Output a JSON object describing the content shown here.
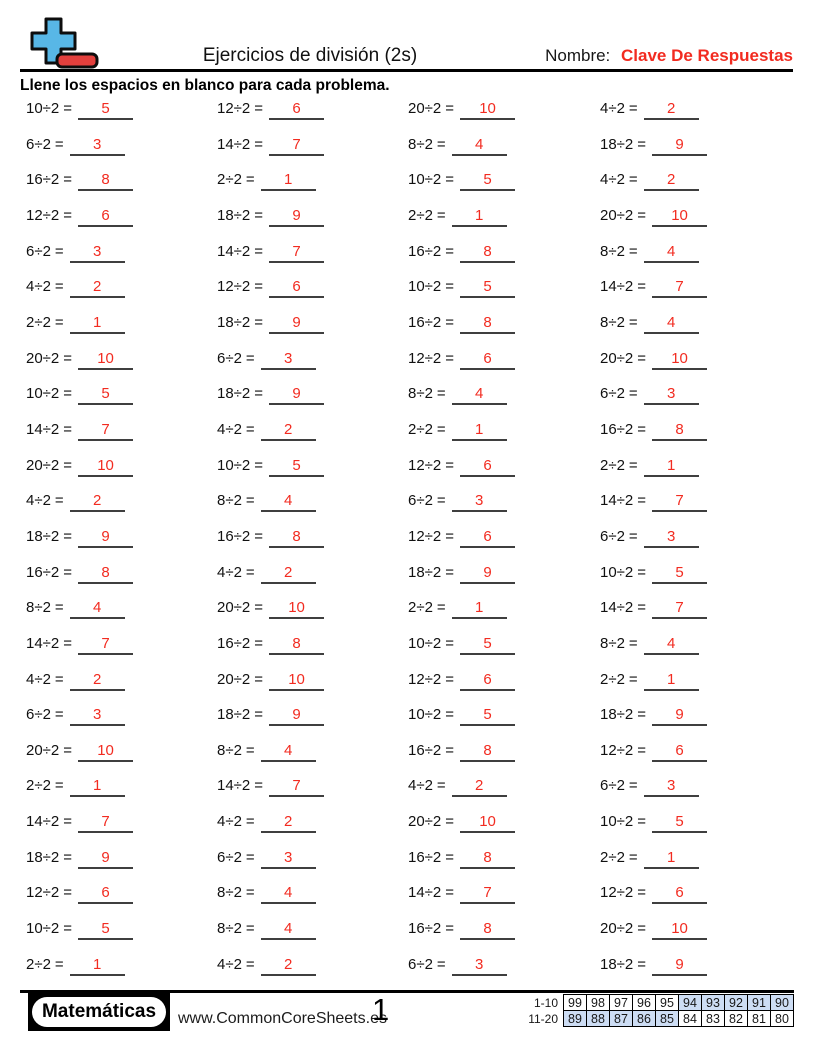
{
  "header": {
    "title": "Ejercicios de división (2s)",
    "name_label": "Nombre:",
    "name_value": "Clave De Respuestas"
  },
  "instruction": "Llene los espacios en blanco para cada problema.",
  "problems": {
    "divisor": 2,
    "equals_sign": "=",
    "columns": [
      {
        "items": [
          {
            "q": "10÷2",
            "a": "5"
          },
          {
            "q": "6÷2",
            "a": "3"
          },
          {
            "q": "16÷2",
            "a": "8"
          },
          {
            "q": "12÷2",
            "a": "6"
          },
          {
            "q": "6÷2",
            "a": "3"
          },
          {
            "q": "4÷2",
            "a": "2"
          },
          {
            "q": "2÷2",
            "a": "1"
          },
          {
            "q": "20÷2",
            "a": "10"
          },
          {
            "q": "10÷2",
            "a": "5"
          },
          {
            "q": "14÷2",
            "a": "7"
          },
          {
            "q": "20÷2",
            "a": "10"
          },
          {
            "q": "4÷2",
            "a": "2"
          },
          {
            "q": "18÷2",
            "a": "9"
          },
          {
            "q": "16÷2",
            "a": "8"
          },
          {
            "q": "8÷2",
            "a": "4"
          },
          {
            "q": "14÷2",
            "a": "7"
          },
          {
            "q": "4÷2",
            "a": "2"
          },
          {
            "q": "6÷2",
            "a": "3"
          },
          {
            "q": "20÷2",
            "a": "10"
          },
          {
            "q": "2÷2",
            "a": "1"
          },
          {
            "q": "14÷2",
            "a": "7"
          },
          {
            "q": "18÷2",
            "a": "9"
          },
          {
            "q": "12÷2",
            "a": "6"
          },
          {
            "q": "10÷2",
            "a": "5"
          },
          {
            "q": "2÷2",
            "a": "1"
          }
        ]
      },
      {
        "items": [
          {
            "q": "12÷2",
            "a": "6"
          },
          {
            "q": "14÷2",
            "a": "7"
          },
          {
            "q": "2÷2",
            "a": "1"
          },
          {
            "q": "18÷2",
            "a": "9"
          },
          {
            "q": "14÷2",
            "a": "7"
          },
          {
            "q": "12÷2",
            "a": "6"
          },
          {
            "q": "18÷2",
            "a": "9"
          },
          {
            "q": "6÷2",
            "a": "3"
          },
          {
            "q": "18÷2",
            "a": "9"
          },
          {
            "q": "4÷2",
            "a": "2"
          },
          {
            "q": "10÷2",
            "a": "5"
          },
          {
            "q": "8÷2",
            "a": "4"
          },
          {
            "q": "16÷2",
            "a": "8"
          },
          {
            "q": "4÷2",
            "a": "2"
          },
          {
            "q": "20÷2",
            "a": "10"
          },
          {
            "q": "16÷2",
            "a": "8"
          },
          {
            "q": "20÷2",
            "a": "10"
          },
          {
            "q": "18÷2",
            "a": "9"
          },
          {
            "q": "8÷2",
            "a": "4"
          },
          {
            "q": "14÷2",
            "a": "7"
          },
          {
            "q": "4÷2",
            "a": "2"
          },
          {
            "q": "6÷2",
            "a": "3"
          },
          {
            "q": "8÷2",
            "a": "4"
          },
          {
            "q": "8÷2",
            "a": "4"
          },
          {
            "q": "4÷2",
            "a": "2"
          }
        ]
      },
      {
        "items": [
          {
            "q": "20÷2",
            "a": "10"
          },
          {
            "q": "8÷2",
            "a": "4"
          },
          {
            "q": "10÷2",
            "a": "5"
          },
          {
            "q": "2÷2",
            "a": "1"
          },
          {
            "q": "16÷2",
            "a": "8"
          },
          {
            "q": "10÷2",
            "a": "5"
          },
          {
            "q": "16÷2",
            "a": "8"
          },
          {
            "q": "12÷2",
            "a": "6"
          },
          {
            "q": "8÷2",
            "a": "4"
          },
          {
            "q": "2÷2",
            "a": "1"
          },
          {
            "q": "12÷2",
            "a": "6"
          },
          {
            "q": "6÷2",
            "a": "3"
          },
          {
            "q": "12÷2",
            "a": "6"
          },
          {
            "q": "18÷2",
            "a": "9"
          },
          {
            "q": "2÷2",
            "a": "1"
          },
          {
            "q": "10÷2",
            "a": "5"
          },
          {
            "q": "12÷2",
            "a": "6"
          },
          {
            "q": "10÷2",
            "a": "5"
          },
          {
            "q": "16÷2",
            "a": "8"
          },
          {
            "q": "4÷2",
            "a": "2"
          },
          {
            "q": "20÷2",
            "a": "10"
          },
          {
            "q": "16÷2",
            "a": "8"
          },
          {
            "q": "14÷2",
            "a": "7"
          },
          {
            "q": "16÷2",
            "a": "8"
          },
          {
            "q": "6÷2",
            "a": "3"
          }
        ]
      },
      {
        "items": [
          {
            "q": "4÷2",
            "a": "2"
          },
          {
            "q": "18÷2",
            "a": "9"
          },
          {
            "q": "4÷2",
            "a": "2"
          },
          {
            "q": "20÷2",
            "a": "10"
          },
          {
            "q": "8÷2",
            "a": "4"
          },
          {
            "q": "14÷2",
            "a": "7"
          },
          {
            "q": "8÷2",
            "a": "4"
          },
          {
            "q": "20÷2",
            "a": "10"
          },
          {
            "q": "6÷2",
            "a": "3"
          },
          {
            "q": "16÷2",
            "a": "8"
          },
          {
            "q": "2÷2",
            "a": "1"
          },
          {
            "q": "14÷2",
            "a": "7"
          },
          {
            "q": "6÷2",
            "a": "3"
          },
          {
            "q": "10÷2",
            "a": "5"
          },
          {
            "q": "14÷2",
            "a": "7"
          },
          {
            "q": "8÷2",
            "a": "4"
          },
          {
            "q": "2÷2",
            "a": "1"
          },
          {
            "q": "18÷2",
            "a": "9"
          },
          {
            "q": "12÷2",
            "a": "6"
          },
          {
            "q": "6÷2",
            "a": "3"
          },
          {
            "q": "10÷2",
            "a": "5"
          },
          {
            "q": "2÷2",
            "a": "1"
          },
          {
            "q": "12÷2",
            "a": "6"
          },
          {
            "q": "20÷2",
            "a": "10"
          },
          {
            "q": "18÷2",
            "a": "9"
          }
        ]
      }
    ]
  },
  "footer": {
    "subject_badge": "Matemáticas",
    "website": "www.CommonCoreSheets.es",
    "page_number": "1",
    "score_table": {
      "rows": [
        {
          "label": "1-10",
          "values": [
            "99",
            "98",
            "97",
            "96",
            "95",
            "94",
            "93",
            "92",
            "91",
            "90"
          ],
          "highlighted": [
            false,
            false,
            false,
            false,
            false,
            true,
            true,
            true,
            true,
            true
          ]
        },
        {
          "label": "11-20",
          "values": [
            "89",
            "88",
            "87",
            "86",
            "85",
            "84",
            "83",
            "82",
            "81",
            "80"
          ],
          "highlighted": [
            true,
            true,
            true,
            true,
            true,
            false,
            false,
            false,
            false,
            false
          ]
        }
      ]
    }
  },
  "colors": {
    "answer_red": "#f22b20",
    "underline": "#3f3f3f",
    "score_highlight": "#cdddf4",
    "logo_blue": "#58b7e6",
    "logo_red": "#e3403d"
  }
}
